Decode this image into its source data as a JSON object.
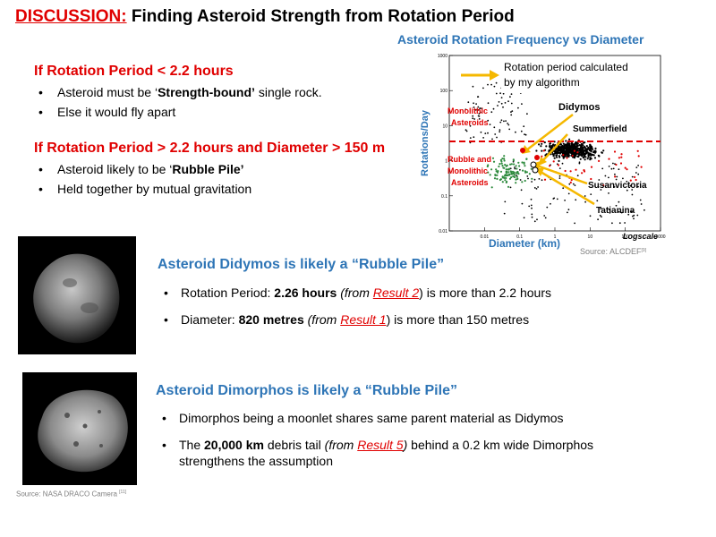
{
  "title": {
    "prefix": "DISCUSSION:",
    "text": " Finding Asteroid Strength from Rotation Period"
  },
  "rules": {
    "rule1": {
      "heading": "If Rotation Period < 2.2 hours",
      "bullet1_pre": "Asteroid must be ‘",
      "bullet1_bold": "Strength-bound’",
      "bullet1_post": "  single rock.",
      "bullet2": "Else it would fly apart"
    },
    "rule2": {
      "heading": "If Rotation Period > 2.2 hours and Diameter > 150 m",
      "bullet1_pre": "Asteroid likely to be ‘",
      "bullet1_bold": "Rubble Pile’",
      "bullet2": "Held together by mutual gravitation"
    }
  },
  "chart": {
    "title": "Asteroid Rotation Frequency vs Diameter",
    "ylabel": "Rotations/Day",
    "xlabel": "Diameter (km)",
    "scale_note": "Logscale",
    "source": "Source: ALCDEF",
    "source_ref": "[9]",
    "annot_algorithm_1": "Rotation period calculated",
    "annot_algorithm_2": "by my algorithm",
    "annot_didymos": "Didymos",
    "annot_summerfield": "Summerfield",
    "annot_susanvictoria": "Susanvictoria",
    "annot_tatianina": "Tatianina",
    "region_mono_1": "Monolithic",
    "region_mono_2": "Asteroids",
    "region_rubble_1": "Rubble and",
    "region_rubble_2": "Monolithic",
    "region_rubble_3": "Asteroids",
    "colors": {
      "threshold": "#e00000",
      "dots": "#000000",
      "red_dots": "#e00000",
      "green_dots": "#2e8b3e",
      "arrow": "#f5b800"
    }
  },
  "chart_data": {
    "type": "scatter",
    "title": "Asteroid Rotation Frequency vs Diameter",
    "xlabel": "Diameter (km)",
    "ylabel": "Rotations/Day",
    "x_scale": "log",
    "y_scale": "log",
    "x_ticks": [
      "0.01",
      "0.1",
      "1",
      "10",
      "100",
      "1000"
    ],
    "y_ticks": [
      "0.01",
      "0.1",
      "1",
      "10",
      "100",
      "1000"
    ],
    "xlim": [
      0.001,
      1000
    ],
    "ylim": [
      0.01,
      1000
    ],
    "threshold_rotations_per_day": 10.9,
    "highlighted": [
      {
        "name": "Didymos",
        "diameter_km": 0.82,
        "rotations_per_day": 10.6
      },
      {
        "name": "Summerfield",
        "diameter_km": 3,
        "rotations_per_day": 7
      },
      {
        "name": "Susanvictoria",
        "diameter_km": 1.5,
        "rotations_per_day": 4
      },
      {
        "name": "Tatianina",
        "diameter_km": 2,
        "rotations_per_day": 3
      }
    ]
  },
  "didymos": {
    "heading": "Asteroid Didymos is likely a “Rubble Pile”",
    "b1_pre": "Rotation Period: ",
    "b1_bold": "2.26 hours",
    "b1_paren_open": "  (from ",
    "b1_ref": "Result 2",
    "b1_post": ") is more than 2.2 hours",
    "b2_pre": "Diameter: ",
    "b2_bold": "820 metres",
    "b2_paren_open": " (from ",
    "b2_ref": "Result 1",
    "b2_post": ") is more than 150 metres"
  },
  "dimorphos": {
    "heading": "Asteroid Dimorphos is likely a “Rubble Pile”",
    "b1": "Dimorphos being a moonlet shares same parent material as Didymos",
    "b2_pre": "The ",
    "b2_bold": "20,000 km",
    "b2_mid": " debris tail ",
    "b2_paren_open": "(from ",
    "b2_ref": "Result 5",
    "b2_paren_close": ")",
    "b2_post": " behind a 0.2 km wide Dimorphos strengthens the assumption"
  },
  "photo_source": {
    "text": "Source: NASA DRACO Camera",
    "ref": "[11]"
  }
}
